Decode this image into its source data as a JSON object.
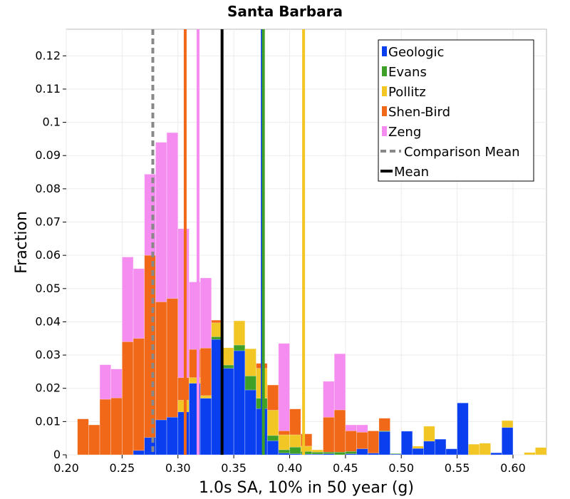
{
  "chart_data": {
    "type": "bar",
    "title": "Santa Barbara",
    "xlabel": "1.0s SA, 10% in 50 year (g)",
    "ylabel": "Fraction",
    "xlim": [
      0.2,
      0.63
    ],
    "ylim": [
      0,
      0.128
    ],
    "xticks": [
      "0.20",
      "0.25",
      "0.30",
      "0.35",
      "0.40",
      "0.45",
      "0.50",
      "0.55",
      "0.60"
    ],
    "xtick_values": [
      0.2,
      0.25,
      0.3,
      0.35,
      0.4,
      0.45,
      0.5,
      0.55,
      0.6
    ],
    "yticks": [
      "0",
      "0.01",
      "0.02",
      "0.03",
      "0.04",
      "0.05",
      "0.06",
      "0.07",
      "0.08",
      "0.09",
      "0.1",
      "0.11",
      "0.12"
    ],
    "ytick_values": [
      0,
      0.01,
      0.02,
      0.03,
      0.04,
      0.05,
      0.06,
      0.07,
      0.08,
      0.09,
      0.1,
      0.11,
      0.12
    ],
    "grid": true,
    "legend_position": "top-right",
    "bin_width": 0.01,
    "series": [
      {
        "name": "Geologic",
        "color": "#0a3ff0",
        "bars": [
          [
            0.26,
            0.0013
          ],
          [
            0.27,
            0.0052
          ],
          [
            0.28,
            0.0105
          ],
          [
            0.29,
            0.0113
          ],
          [
            0.3,
            0.0129
          ],
          [
            0.31,
            0.0215
          ],
          [
            0.32,
            0.017
          ],
          [
            0.33,
            0.0347
          ],
          [
            0.34,
            0.026
          ],
          [
            0.35,
            0.0313
          ],
          [
            0.36,
            0.0195
          ],
          [
            0.37,
            0.0139
          ],
          [
            0.38,
            0.0042
          ],
          [
            0.39,
            0.0005
          ],
          [
            0.4,
            0.0003
          ],
          [
            0.41,
            0.0002
          ],
          [
            0.42,
            0.0002
          ],
          [
            0.43,
            0.0003
          ],
          [
            0.45,
            0.0003
          ],
          [
            0.46,
            0.0018
          ],
          [
            0.47,
            0.0005
          ],
          [
            0.48,
            0.007
          ],
          [
            0.49,
            0.0002
          ],
          [
            0.5,
            0.0071
          ],
          [
            0.51,
            0.0019
          ],
          [
            0.52,
            0.0041
          ],
          [
            0.53,
            0.0047
          ],
          [
            0.54,
            0.0018
          ],
          [
            0.55,
            0.0156
          ],
          [
            0.58,
            0.0006
          ],
          [
            0.59,
            0.0082
          ]
        ]
      },
      {
        "name": "Evans",
        "color": "#3fa028",
        "bars": [
          [
            0.33,
            0.0355
          ],
          [
            0.34,
            0.027
          ],
          [
            0.35,
            0.033
          ],
          [
            0.36,
            0.0237
          ],
          [
            0.37,
            0.017
          ],
          [
            0.38,
            0.0058
          ],
          [
            0.39,
            0.0015
          ],
          [
            0.4,
            0.0023
          ],
          [
            0.41,
            0.001
          ],
          [
            0.42,
            0.0008
          ],
          [
            0.43,
            0.0008
          ],
          [
            0.44,
            0.0008
          ],
          [
            0.45,
            0.001
          ],
          [
            0.48,
            0.0072
          ],
          [
            0.49,
            0.0004
          ]
        ]
      },
      {
        "name": "Pollitz",
        "color": "#f2c624",
        "bars": [
          [
            0.3,
            0.0164
          ],
          [
            0.31,
            0.0232
          ],
          [
            0.32,
            0.0178
          ],
          [
            0.33,
            0.0397
          ],
          [
            0.34,
            0.0322
          ],
          [
            0.35,
            0.0403
          ],
          [
            0.36,
            0.0319
          ],
          [
            0.37,
            0.026
          ],
          [
            0.38,
            0.0134
          ],
          [
            0.39,
            0.006
          ],
          [
            0.4,
            0.006
          ],
          [
            0.41,
            0.0026
          ],
          [
            0.42,
            0.0015
          ],
          [
            0.51,
            0.0026
          ],
          [
            0.52,
            0.0086
          ],
          [
            0.53,
            0.003
          ],
          [
            0.56,
            0.0032
          ],
          [
            0.57,
            0.0035
          ],
          [
            0.59,
            0.0103
          ],
          [
            0.61,
            0.0007
          ],
          [
            0.62,
            0.0022
          ]
        ]
      },
      {
        "name": "Shen-Bird",
        "color": "#f06818",
        "bars": [
          [
            0.21,
            0.0108
          ],
          [
            0.22,
            0.009
          ],
          [
            0.23,
            0.0167
          ],
          [
            0.24,
            0.0171
          ],
          [
            0.25,
            0.034
          ],
          [
            0.26,
            0.035
          ],
          [
            0.27,
            0.06
          ],
          [
            0.28,
            0.046
          ],
          [
            0.29,
            0.047
          ],
          [
            0.3,
            0.0232
          ],
          [
            0.31,
            0.0317
          ],
          [
            0.32,
            0.0321
          ],
          [
            0.33,
            0.0405
          ],
          [
            0.34,
            0.027
          ],
          [
            0.35,
            0.031
          ],
          [
            0.36,
            0.028
          ],
          [
            0.37,
            0.0275
          ],
          [
            0.38,
            0.021
          ],
          [
            0.39,
            0.0072
          ],
          [
            0.4,
            0.0138
          ],
          [
            0.41,
            0.0063
          ],
          [
            0.42,
            0.001
          ],
          [
            0.43,
            0.0113
          ],
          [
            0.44,
            0.0135
          ],
          [
            0.45,
            0.0072
          ],
          [
            0.46,
            0.0068
          ],
          [
            0.47,
            0.0072
          ],
          [
            0.48,
            0.011
          ]
        ]
      },
      {
        "name": "Zeng",
        "color": "#f58cf0",
        "bars": [
          [
            0.23,
            0.0271
          ],
          [
            0.24,
            0.0258
          ],
          [
            0.25,
            0.0595
          ],
          [
            0.26,
            0.056
          ],
          [
            0.27,
            0.0844
          ],
          [
            0.28,
            0.094
          ],
          [
            0.29,
            0.0969
          ],
          [
            0.3,
            0.068
          ],
          [
            0.31,
            0.052
          ],
          [
            0.32,
            0.0532
          ],
          [
            0.33,
            0.0365
          ],
          [
            0.36,
            0.03
          ],
          [
            0.37,
            0.0212
          ],
          [
            0.38,
            0.0085
          ],
          [
            0.39,
            0.0335
          ],
          [
            0.4,
            0.0087
          ],
          [
            0.41,
            0.004
          ],
          [
            0.43,
            0.0221
          ],
          [
            0.44,
            0.0304
          ],
          [
            0.45,
            0.009
          ],
          [
            0.46,
            0.009
          ]
        ]
      }
    ],
    "stack_order": [
      "Zeng",
      "Shen-Bird",
      "Pollitz",
      "Evans",
      "Geologic"
    ],
    "mean_lines": [
      {
        "series": "Shen-Bird",
        "x": 0.3065,
        "color": "#f06818"
      },
      {
        "series": "Zeng",
        "x": 0.318,
        "color": "#f58cf0"
      },
      {
        "series": "Geologic",
        "x": 0.3755,
        "color": "#0a3ff0"
      },
      {
        "series": "Evans",
        "x": 0.3765,
        "color": "#3fa028"
      },
      {
        "series": "Pollitz",
        "x": 0.4125,
        "color": "#f2c624"
      }
    ],
    "comparison_mean": {
      "name": "Comparison Mean",
      "x": 0.2775,
      "color": "#888888"
    },
    "mean": {
      "name": "Mean",
      "x": 0.3395,
      "color": "#000000"
    }
  }
}
